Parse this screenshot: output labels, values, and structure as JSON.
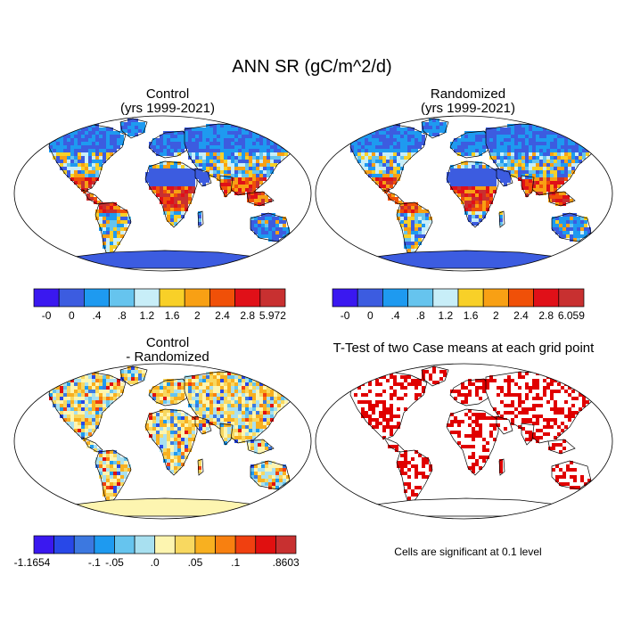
{
  "title": "ANN SR (gC/m^2/d)",
  "panels": {
    "control": {
      "title_line1": "Control",
      "title_line2": "(yrs 1999-2021)"
    },
    "randomized": {
      "title_line1": "Randomized",
      "title_line2": "(yrs 1999-2021)"
    },
    "difference": {
      "title_line1": "Control",
      "title_line2": "- Randomized"
    },
    "ttest": {
      "title_line1": "T-Test of two Case means at each grid point"
    }
  },
  "colorbars": {
    "control": {
      "colors": [
        "#3a18f0",
        "#3c5ce0",
        "#1e9af0",
        "#66c4ee",
        "#c8eef8",
        "#f8d028",
        "#f8a014",
        "#f05008",
        "#e01018",
        "#c83030"
      ],
      "labels": [
        "-0",
        "0",
        ".4",
        ".8",
        "1.2",
        "1.6",
        "2",
        "2.4",
        "2.8",
        "5.972"
      ]
    },
    "randomized": {
      "colors": [
        "#3a18f0",
        "#3c5ce0",
        "#1e9af0",
        "#66c4ee",
        "#c8eef8",
        "#f8d028",
        "#f8a014",
        "#f05008",
        "#e01018",
        "#c83030"
      ],
      "labels": [
        "-0",
        "0",
        ".4",
        ".8",
        "1.2",
        "1.6",
        "2",
        "2.4",
        "2.8",
        "6.059"
      ]
    },
    "difference": {
      "colors": [
        "#3a18f0",
        "#2848e8",
        "#3c78e0",
        "#1e9af0",
        "#66c4ee",
        "#a8e0f0",
        "#fdf5b0",
        "#f8d860",
        "#f8b020",
        "#f88010",
        "#f04010",
        "#e01010",
        "#c83030"
      ],
      "labels": [
        "-1.1654",
        "-.1",
        "-.05",
        ".0",
        ".05",
        ".1",
        ".8603"
      ]
    }
  },
  "ttest_note": "Cells are significant at 0.1 level",
  "map_colors": {
    "ocean": "#ffffff",
    "antarctica_abs": "#3c5ce0",
    "antarctica_diff": "#fdf5b0",
    "significant": "#e00000"
  }
}
